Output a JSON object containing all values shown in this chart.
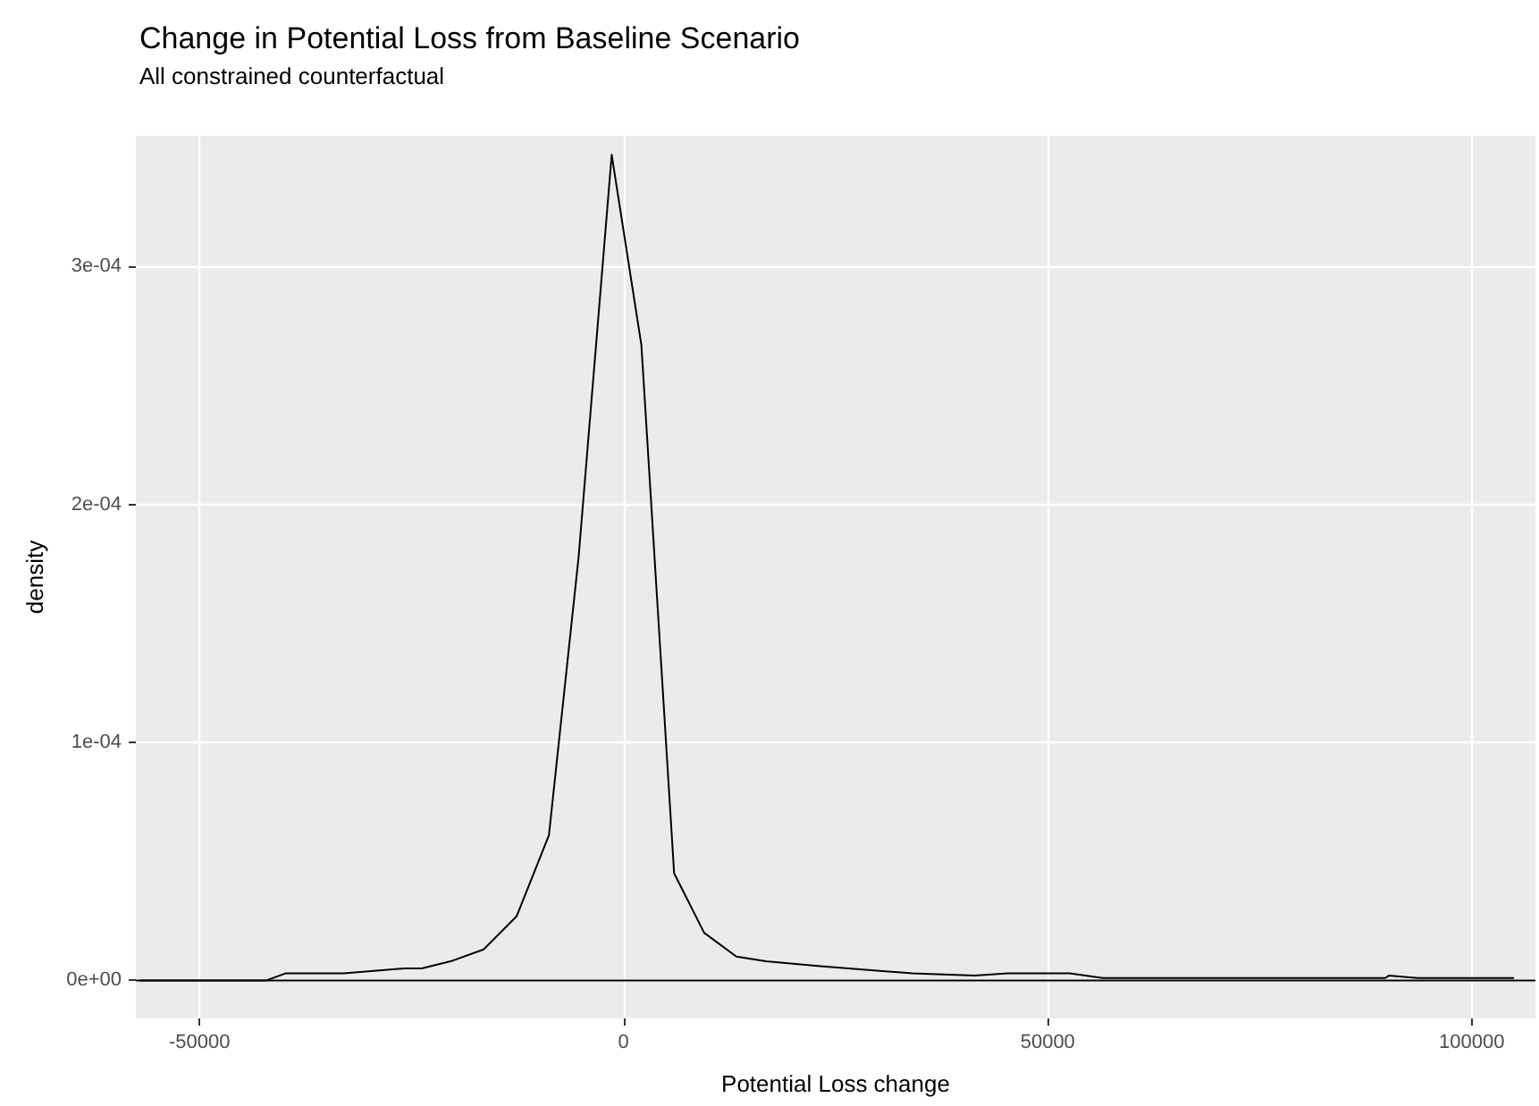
{
  "chart_data": {
    "type": "line",
    "title": "Change in Potential Loss from Baseline Scenario",
    "subtitle": "All constrained counterfactual",
    "xlabel": "Potential Loss change",
    "ylabel": "density",
    "x": [
      -57000,
      -42100,
      -39800,
      -33000,
      -25900,
      -23800,
      -20400,
      -16500,
      -12600,
      -8800,
      -5300,
      -1400,
      2100,
      5960,
      9500,
      13300,
      16800,
      23200,
      30200,
      34000,
      41400,
      45300,
      52600,
      56500,
      63800,
      89800,
      90200,
      93600,
      104900
    ],
    "values": [
      0,
      0,
      3e-06,
      3e-06,
      5e-06,
      5e-06,
      8e-06,
      1.3e-05,
      2.7e-05,
      6.1e-05,
      0.000178,
      0.000347,
      0.000267,
      4.5e-05,
      2e-05,
      1e-05,
      8e-06,
      6e-06,
      4e-06,
      3e-06,
      2e-06,
      3e-06,
      3e-06,
      1e-06,
      1e-06,
      1e-06,
      2e-06,
      1e-06,
      1e-06
    ],
    "color": "#000000",
    "marker": "none",
    "xlim": [
      -57500,
      107500
    ],
    "ylim": [
      -1.6e-05,
      0.000355
    ],
    "xticks": [
      -50000,
      0,
      50000,
      100000
    ],
    "yticks": [
      {
        "value": 0,
        "label": "0e+00"
      },
      {
        "value": 0.0001,
        "label": "1e-04"
      },
      {
        "value": 0.0002,
        "label": "2e-04"
      },
      {
        "value": 0.0003,
        "label": "3e-04"
      }
    ],
    "grid": true,
    "ref_lines": [
      {
        "axis": "y",
        "value": 0,
        "color": "#000000"
      }
    ]
  }
}
